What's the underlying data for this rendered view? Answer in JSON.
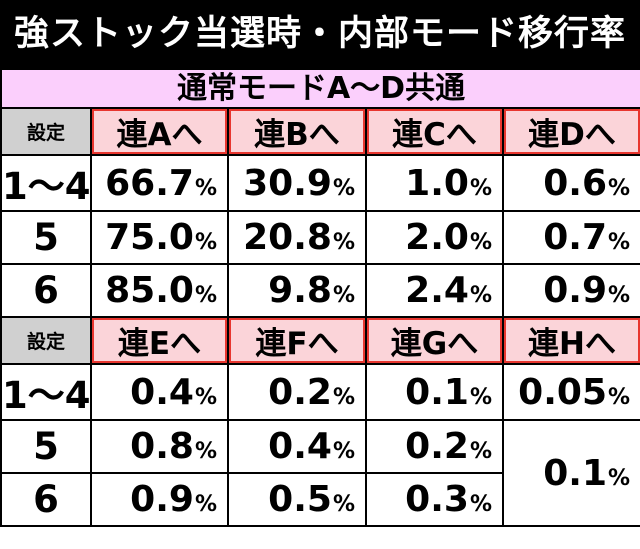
{
  "title": "強ストック当選時・内部モード移行率",
  "subtitle": "通常モードA〜D共通",
  "setting_label": "設定",
  "table1": {
    "headers": [
      "連Aへ",
      "連Bへ",
      "連Cへ",
      "連Dへ"
    ],
    "rows": [
      {
        "setting": "1〜4",
        "values": [
          "66.7",
          "30.9",
          "1.0",
          "0.6"
        ]
      },
      {
        "setting": "5",
        "values": [
          "75.0",
          "20.8",
          "2.0",
          "0.7"
        ]
      },
      {
        "setting": "6",
        "values": [
          "85.0",
          "9.8",
          "2.4",
          "0.9"
        ]
      }
    ]
  },
  "table2": {
    "headers": [
      "連Eへ",
      "連Fへ",
      "連Gへ",
      "連Hへ"
    ],
    "rows": [
      {
        "setting": "1〜4",
        "values": [
          "0.4",
          "0.2",
          "0.1",
          "0.05"
        ]
      },
      {
        "setting": "5",
        "values": [
          "0.8",
          "0.4",
          "0.2"
        ]
      },
      {
        "setting": "6",
        "values": [
          "0.9",
          "0.5",
          "0.3"
        ]
      }
    ],
    "merged_h_value": "0.1"
  },
  "percent_symbol": "%",
  "colors": {
    "title_bg": "#000000",
    "subtitle_bg": "#fbcffc",
    "header_bg": "#fbd4d9",
    "header_border": "#e8362f",
    "label_bg": "#d0d0d0"
  }
}
